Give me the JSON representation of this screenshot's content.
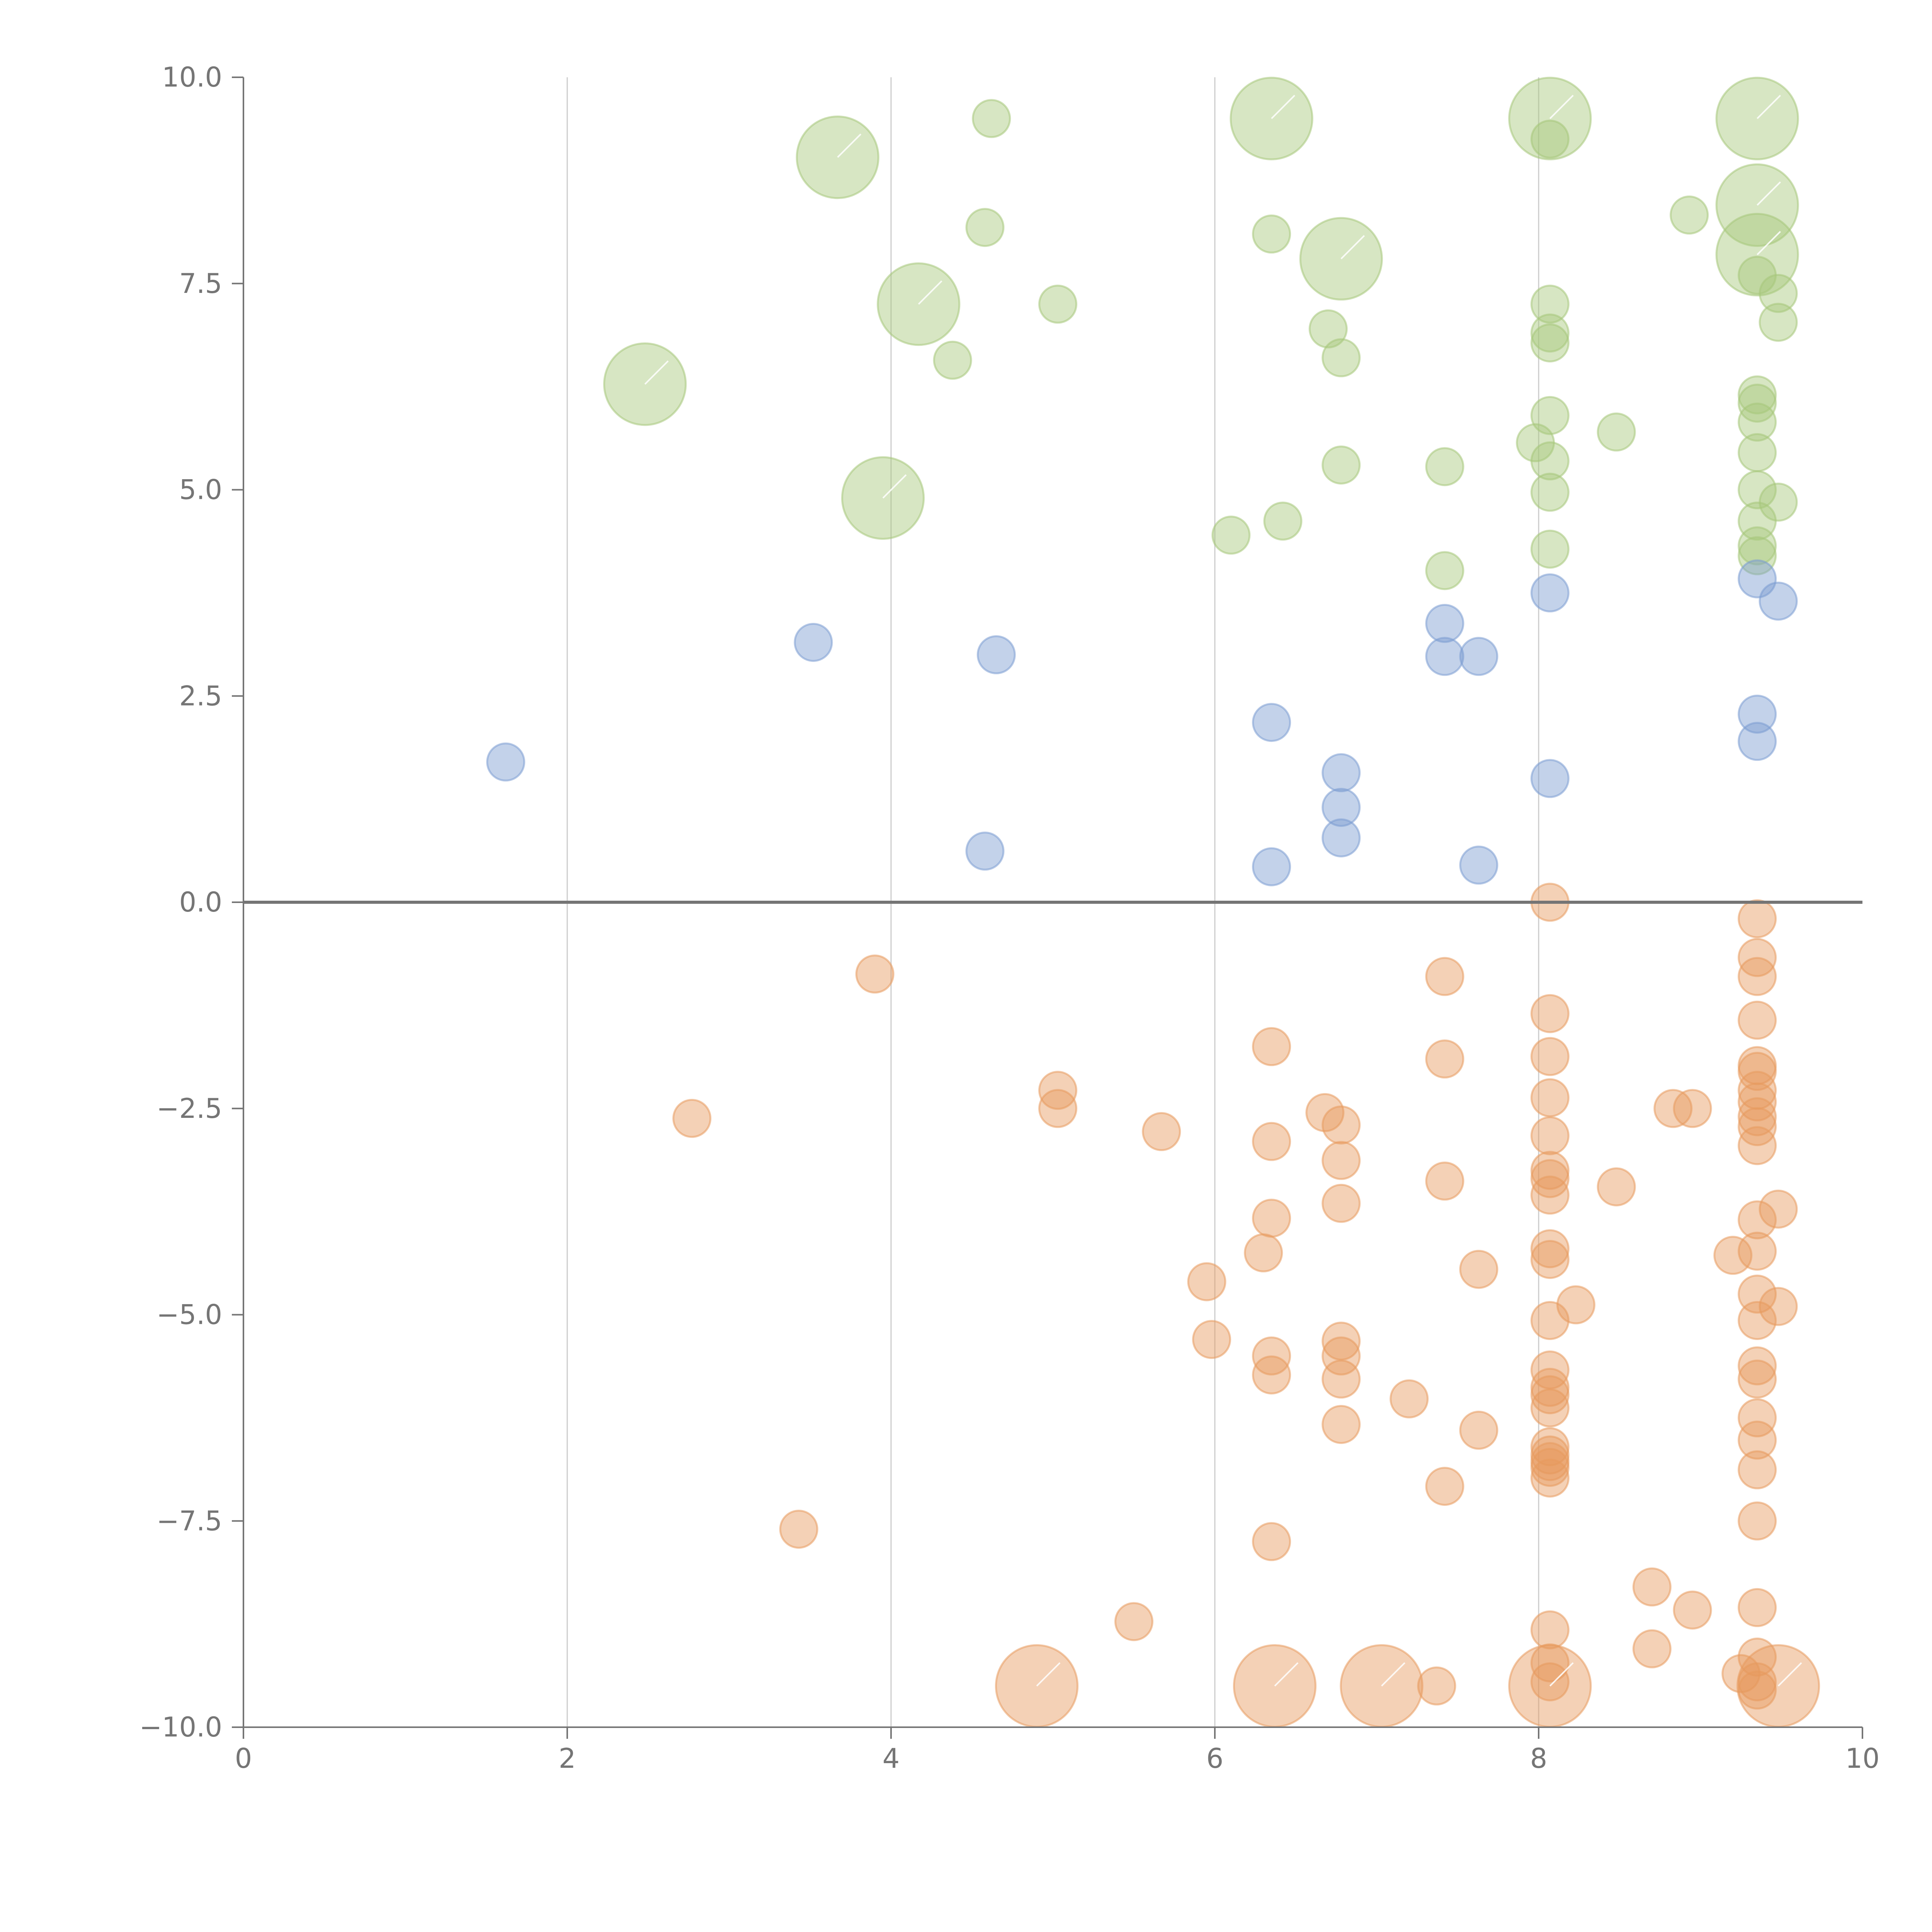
{
  "chart_data": {
    "type": "scatter",
    "title": "",
    "xlabel": "",
    "ylabel": "",
    "xlim": [
      0,
      10
    ],
    "ylim": [
      -10,
      10
    ],
    "x_ticks": [
      0,
      2,
      4,
      6,
      8,
      10
    ],
    "x_tick_labels": [
      "0",
      "2",
      "4",
      "6",
      "8",
      "10"
    ],
    "y_ticks": [
      10,
      7.5,
      5,
      2.5,
      0,
      -2.5,
      -5,
      -7.5,
      -10
    ],
    "y_tick_labels": [
      "10.0",
      "7.5",
      "5.0",
      "2.5",
      "0.0",
      "−2.5",
      "−5.0",
      "−7.5",
      "−10.0"
    ],
    "vertical_grid": true,
    "zero_line": true,
    "colors": {
      "green": "#a6c77a",
      "blue": "#7b9cd1",
      "orange": "#e79a5e",
      "axis": "#757575",
      "grid": "#cccccc"
    },
    "series": [
      {
        "name": "green",
        "color": "#a6c77a",
        "points": [
          [
            4.62,
            9.5,
            1
          ],
          [
            6.35,
            9.5,
            2.2
          ],
          [
            8.07,
            9.5,
            2.2
          ],
          [
            9.35,
            9.5,
            2.2
          ],
          [
            3.67,
            9.03,
            2.2
          ],
          [
            8.07,
            9.25,
            1
          ],
          [
            4.58,
            8.18,
            1
          ],
          [
            6.35,
            8.1,
            1
          ],
          [
            9.35,
            8.45,
            2.2
          ],
          [
            8.93,
            8.33,
            1
          ],
          [
            6.78,
            7.8,
            2.2
          ],
          [
            9.35,
            7.85,
            2.2
          ],
          [
            9.35,
            7.6,
            1
          ],
          [
            4.17,
            7.25,
            2.2
          ],
          [
            5.03,
            7.25,
            1
          ],
          [
            8.07,
            7.25,
            1
          ],
          [
            9.48,
            7.38,
            1
          ],
          [
            9.48,
            7.03,
            1
          ],
          [
            6.7,
            6.95,
            1
          ],
          [
            8.07,
            6.9,
            1
          ],
          [
            8.07,
            6.78,
            1
          ],
          [
            6.78,
            6.6,
            1
          ],
          [
            4.38,
            6.57,
            1
          ],
          [
            2.48,
            6.28,
            2.2
          ],
          [
            9.35,
            6.15,
            1
          ],
          [
            9.35,
            6.05,
            1
          ],
          [
            9.35,
            5.82,
            1
          ],
          [
            8.07,
            5.9,
            1
          ],
          [
            7.98,
            5.57,
            1
          ],
          [
            8.07,
            5.35,
            1
          ],
          [
            8.48,
            5.7,
            1
          ],
          [
            6.78,
            5.3,
            1
          ],
          [
            7.42,
            5.28,
            1
          ],
          [
            9.35,
            5.45,
            1
          ],
          [
            9.35,
            5.0,
            1
          ],
          [
            8.07,
            4.97,
            1
          ],
          [
            3.95,
            4.9,
            2.2
          ],
          [
            9.48,
            4.85,
            1
          ],
          [
            6.42,
            4.62,
            1
          ],
          [
            9.35,
            4.62,
            1
          ],
          [
            6.1,
            4.45,
            1
          ],
          [
            9.35,
            4.32,
            1
          ],
          [
            8.07,
            4.28,
            1
          ],
          [
            9.35,
            4.2,
            1
          ],
          [
            7.42,
            4.02,
            1
          ]
        ]
      },
      {
        "name": "blue",
        "color": "#7b9cd1",
        "points": [
          [
            9.35,
            3.92,
            1
          ],
          [
            8.07,
            3.75,
            1
          ],
          [
            9.48,
            3.65,
            1
          ],
          [
            7.42,
            3.38,
            1
          ],
          [
            3.52,
            3.15,
            1
          ],
          [
            4.65,
            3.0,
            1
          ],
          [
            7.42,
            2.98,
            1
          ],
          [
            7.63,
            2.98,
            1
          ],
          [
            9.35,
            2.28,
            1
          ],
          [
            6.35,
            2.18,
            1
          ],
          [
            9.35,
            1.95,
            1
          ],
          [
            1.62,
            1.7,
            1
          ],
          [
            6.78,
            1.57,
            1
          ],
          [
            8.07,
            1.5,
            1
          ],
          [
            6.78,
            1.15,
            1
          ],
          [
            6.78,
            0.78,
            1
          ],
          [
            4.58,
            0.62,
            1
          ],
          [
            6.35,
            0.43,
            1
          ],
          [
            7.63,
            0.45,
            1
          ]
        ]
      },
      {
        "name": "orange",
        "color": "#e79a5e",
        "points": [
          [
            8.07,
            0.0,
            1
          ],
          [
            9.35,
            -0.2,
            1
          ],
          [
            9.35,
            -0.67,
            1
          ],
          [
            3.9,
            -0.87,
            1
          ],
          [
            7.42,
            -0.9,
            1
          ],
          [
            9.35,
            -0.9,
            1
          ],
          [
            8.07,
            -1.35,
            1
          ],
          [
            9.35,
            -1.43,
            1
          ],
          [
            6.35,
            -1.75,
            1
          ],
          [
            8.07,
            -1.87,
            1
          ],
          [
            7.42,
            -1.9,
            1
          ],
          [
            9.35,
            -1.98,
            1
          ],
          [
            9.35,
            -2.05,
            1
          ],
          [
            5.03,
            -2.28,
            1
          ],
          [
            9.35,
            -2.28,
            1
          ],
          [
            8.07,
            -2.37,
            1
          ],
          [
            9.35,
            -2.42,
            1
          ],
          [
            5.03,
            -2.5,
            1
          ],
          [
            8.83,
            -2.5,
            1
          ],
          [
            8.95,
            -2.5,
            1
          ],
          [
            6.68,
            -2.55,
            1
          ],
          [
            9.35,
            -2.6,
            1
          ],
          [
            2.77,
            -2.62,
            1
          ],
          [
            6.78,
            -2.7,
            1
          ],
          [
            9.35,
            -2.72,
            1
          ],
          [
            5.67,
            -2.78,
            1
          ],
          [
            8.07,
            -2.83,
            1
          ],
          [
            6.35,
            -2.9,
            1
          ],
          [
            9.35,
            -2.95,
            1
          ],
          [
            6.78,
            -3.13,
            1
          ],
          [
            8.07,
            -3.25,
            1
          ],
          [
            8.07,
            -3.35,
            1
          ],
          [
            7.42,
            -3.38,
            1
          ],
          [
            8.48,
            -3.45,
            1
          ],
          [
            8.07,
            -3.55,
            1
          ],
          [
            6.78,
            -3.65,
            1
          ],
          [
            9.48,
            -3.72,
            1
          ],
          [
            6.35,
            -3.83,
            1
          ],
          [
            9.35,
            -3.85,
            1
          ],
          [
            8.07,
            -4.2,
            1
          ],
          [
            9.35,
            -4.23,
            1
          ],
          [
            6.3,
            -4.25,
            1
          ],
          [
            9.2,
            -4.28,
            1
          ],
          [
            8.07,
            -4.33,
            1
          ],
          [
            7.63,
            -4.45,
            1
          ],
          [
            5.95,
            -4.6,
            1
          ],
          [
            9.35,
            -4.75,
            1
          ],
          [
            8.23,
            -4.88,
            1
          ],
          [
            9.48,
            -4.9,
            1
          ],
          [
            8.07,
            -5.07,
            1
          ],
          [
            9.35,
            -5.07,
            1
          ],
          [
            5.98,
            -5.3,
            1
          ],
          [
            6.78,
            -5.32,
            1
          ],
          [
            6.35,
            -5.5,
            1
          ],
          [
            6.78,
            -5.5,
            1
          ],
          [
            9.35,
            -5.62,
            1
          ],
          [
            8.07,
            -5.67,
            1
          ],
          [
            6.35,
            -5.73,
            1
          ],
          [
            9.35,
            -5.78,
            1
          ],
          [
            6.78,
            -5.78,
            1
          ],
          [
            8.07,
            -5.88,
            1
          ],
          [
            8.07,
            -5.97,
            1
          ],
          [
            7.2,
            -6.02,
            1
          ],
          [
            8.07,
            -6.13,
            1
          ],
          [
            9.35,
            -6.25,
            1
          ],
          [
            6.78,
            -6.33,
            1
          ],
          [
            7.63,
            -6.4,
            1
          ],
          [
            9.35,
            -6.52,
            1
          ],
          [
            8.07,
            -6.6,
            1
          ],
          [
            8.07,
            -6.7,
            1
          ],
          [
            8.07,
            -6.78,
            1
          ],
          [
            8.07,
            -6.85,
            1
          ],
          [
            9.35,
            -6.88,
            1
          ],
          [
            8.07,
            -6.98,
            1
          ],
          [
            7.42,
            -7.08,
            1
          ],
          [
            9.35,
            -7.5,
            1
          ],
          [
            3.43,
            -7.6,
            1
          ],
          [
            6.35,
            -7.75,
            1
          ],
          [
            8.7,
            -8.3,
            1
          ],
          [
            9.35,
            -8.55,
            1
          ],
          [
            8.95,
            -8.58,
            1
          ],
          [
            5.5,
            -8.72,
            1
          ],
          [
            8.07,
            -8.82,
            1
          ],
          [
            8.7,
            -9.05,
            1
          ],
          [
            9.35,
            -9.15,
            1
          ],
          [
            8.07,
            -9.22,
            1
          ],
          [
            9.25,
            -9.35,
            1
          ],
          [
            8.07,
            -9.45,
            1
          ],
          [
            9.35,
            -9.45,
            1
          ],
          [
            9.35,
            -9.55,
            1
          ],
          [
            7.37,
            -9.5,
            1
          ],
          [
            4.9,
            -9.5,
            2.2
          ],
          [
            6.37,
            -9.5,
            2.2
          ],
          [
            7.03,
            -9.5,
            2.2
          ],
          [
            8.07,
            -9.5,
            2.2
          ],
          [
            9.48,
            -9.5,
            2.2
          ]
        ]
      }
    ]
  }
}
